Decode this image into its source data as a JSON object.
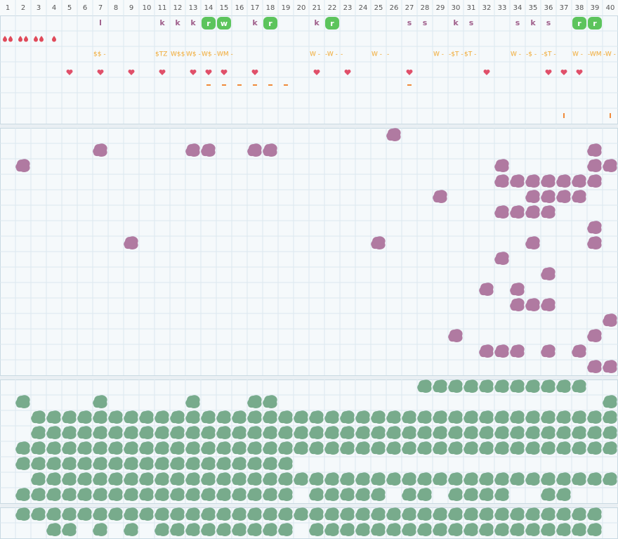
{
  "header": {
    "columns": [
      1,
      2,
      3,
      4,
      5,
      6,
      7,
      8,
      9,
      10,
      11,
      12,
      13,
      14,
      15,
      16,
      17,
      18,
      19,
      20,
      21,
      22,
      23,
      24,
      25,
      26,
      27,
      28,
      29,
      30,
      31,
      32,
      33,
      34,
      35,
      36,
      37,
      38,
      39,
      40
    ]
  },
  "top_panel": {
    "letters": [
      {
        "col": 7,
        "text": "l"
      },
      {
        "col": 11,
        "text": "k"
      },
      {
        "col": 12,
        "text": "k"
      },
      {
        "col": 13,
        "text": "k"
      },
      {
        "col": 14,
        "text": "r",
        "badge": true
      },
      {
        "col": 15,
        "text": "w",
        "badge": true
      },
      {
        "col": 17,
        "text": "k"
      },
      {
        "col": 18,
        "text": "r",
        "badge": true
      },
      {
        "col": 21,
        "text": "k"
      },
      {
        "col": 22,
        "text": "r",
        "badge": true
      },
      {
        "col": 27,
        "text": "s"
      },
      {
        "col": 28,
        "text": "s"
      },
      {
        "col": 30,
        "text": "k"
      },
      {
        "col": 31,
        "text": "s"
      },
      {
        "col": 34,
        "text": "s"
      },
      {
        "col": 35,
        "text": "k"
      },
      {
        "col": 36,
        "text": "s"
      },
      {
        "col": 38,
        "text": "r",
        "badge": true
      },
      {
        "col": 39,
        "text": "r",
        "badge": true
      }
    ],
    "drops": [
      {
        "col": 1,
        "count": 2
      },
      {
        "col": 2,
        "count": 2
      },
      {
        "col": 3,
        "count": 2
      },
      {
        "col": 4,
        "count": 1
      }
    ],
    "notes": [
      {
        "col": 7,
        "text": "$$ -"
      },
      {
        "col": 11,
        "text": "$TZ"
      },
      {
        "col": 12,
        "text": "W$$"
      },
      {
        "col": 13,
        "text": "W$ -"
      },
      {
        "col": 14,
        "text": "W$ -"
      },
      {
        "col": 15,
        "text": "WM -"
      },
      {
        "col": 21,
        "text": "W -"
      },
      {
        "col": 22,
        "text": "-W -"
      },
      {
        "col": 23,
        "text": "-"
      },
      {
        "col": 25,
        "text": "W -"
      },
      {
        "col": 26,
        "text": "-"
      },
      {
        "col": 29,
        "text": "W -"
      },
      {
        "col": 30,
        "text": "-$T -"
      },
      {
        "col": 31,
        "text": "$T -"
      },
      {
        "col": 34,
        "text": "W -"
      },
      {
        "col": 35,
        "text": "-$ -"
      },
      {
        "col": 36,
        "text": "-$T -"
      },
      {
        "col": 38,
        "text": "W -"
      },
      {
        "col": 39,
        "text": "-WM"
      },
      {
        "col": 40,
        "text": "-W -"
      }
    ],
    "hearts": [
      5,
      7,
      9,
      11,
      13,
      14,
      15,
      17,
      21,
      23,
      27,
      32,
      36,
      37,
      38
    ],
    "dashes": [
      14,
      15,
      16,
      17,
      18,
      19,
      27
    ],
    "ticks": [
      37,
      40
    ]
  },
  "purple_panel": {
    "rows": [
      [
        26
      ],
      [
        7,
        13,
        14,
        17,
        18,
        39
      ],
      [
        2,
        33,
        39,
        40
      ],
      [
        33,
        34,
        35,
        36,
        37,
        38,
        39
      ],
      [
        29,
        35,
        36,
        37,
        38
      ],
      [
        33,
        34,
        35,
        36
      ],
      [
        39
      ],
      [
        9,
        25,
        35,
        39
      ],
      [
        33
      ],
      [
        36
      ],
      [
        32,
        34
      ],
      [
        34,
        35,
        36
      ],
      [
        40
      ],
      [
        30,
        39
      ],
      [
        32,
        33,
        34,
        36,
        38
      ],
      [
        39,
        40
      ]
    ]
  },
  "green_panel": {
    "rows": [
      [
        28,
        29,
        30,
        31,
        32,
        33,
        34,
        35,
        36,
        37,
        38
      ],
      [
        2,
        7,
        13,
        17,
        18,
        40
      ],
      [
        3,
        4,
        5,
        6,
        7,
        8,
        9,
        10,
        11,
        12,
        13,
        14,
        15,
        16,
        17,
        18,
        19,
        20,
        21,
        22,
        23,
        24,
        25,
        26,
        27,
        28,
        29,
        30,
        31,
        32,
        33,
        34,
        35,
        36,
        37,
        38,
        39,
        40
      ],
      [
        3,
        4,
        5,
        6,
        7,
        8,
        9,
        10,
        11,
        12,
        13,
        14,
        15,
        16,
        17,
        18,
        19,
        20,
        21,
        22,
        23,
        24,
        25,
        26,
        27,
        28,
        29,
        30,
        31,
        32,
        33,
        34,
        35,
        36,
        37,
        38,
        39,
        40
      ],
      [
        2,
        3,
        4,
        5,
        6,
        7,
        8,
        9,
        10,
        11,
        12,
        13,
        14,
        15,
        16,
        17,
        18,
        19,
        20,
        21,
        22,
        23,
        24,
        25,
        26,
        27,
        28,
        29,
        30,
        31,
        32,
        33,
        34,
        35,
        36,
        37,
        38,
        39,
        40
      ],
      [
        2,
        3,
        4,
        5,
        6,
        7,
        8,
        9,
        10,
        11,
        12,
        13,
        14,
        15,
        16,
        17,
        18,
        19
      ],
      [
        3,
        4,
        5,
        6,
        7,
        8,
        9,
        10,
        11,
        12,
        13,
        14,
        15,
        16,
        17,
        18,
        19,
        20,
        21,
        22,
        23,
        24,
        25,
        26,
        27,
        28,
        29,
        30,
        31,
        32,
        33,
        34,
        35,
        36,
        37,
        38,
        39,
        40
      ],
      [
        2,
        3,
        4,
        5,
        6,
        7,
        8,
        9,
        10,
        11,
        12,
        13,
        14,
        15,
        16,
        17,
        18,
        19,
        21,
        22,
        23,
        24,
        25,
        27,
        28,
        30,
        31,
        32,
        33,
        36,
        37
      ]
    ]
  },
  "bottom_panel": {
    "rows": [
      [
        2,
        3,
        4,
        5,
        6,
        7,
        8,
        9,
        10,
        11,
        12,
        13,
        14,
        15,
        16,
        17,
        18,
        19,
        20,
        21,
        22,
        23,
        24,
        25,
        26,
        27,
        28,
        29,
        30,
        31,
        32,
        33,
        34,
        35,
        36,
        37,
        38,
        39
      ],
      [
        4,
        5,
        7,
        9,
        11,
        12,
        13,
        14,
        15,
        16,
        17,
        18,
        19,
        21,
        22,
        23,
        24,
        25,
        26,
        27,
        28,
        29,
        30,
        31,
        32,
        33,
        34,
        35,
        36,
        37,
        38,
        39
      ]
    ]
  }
}
